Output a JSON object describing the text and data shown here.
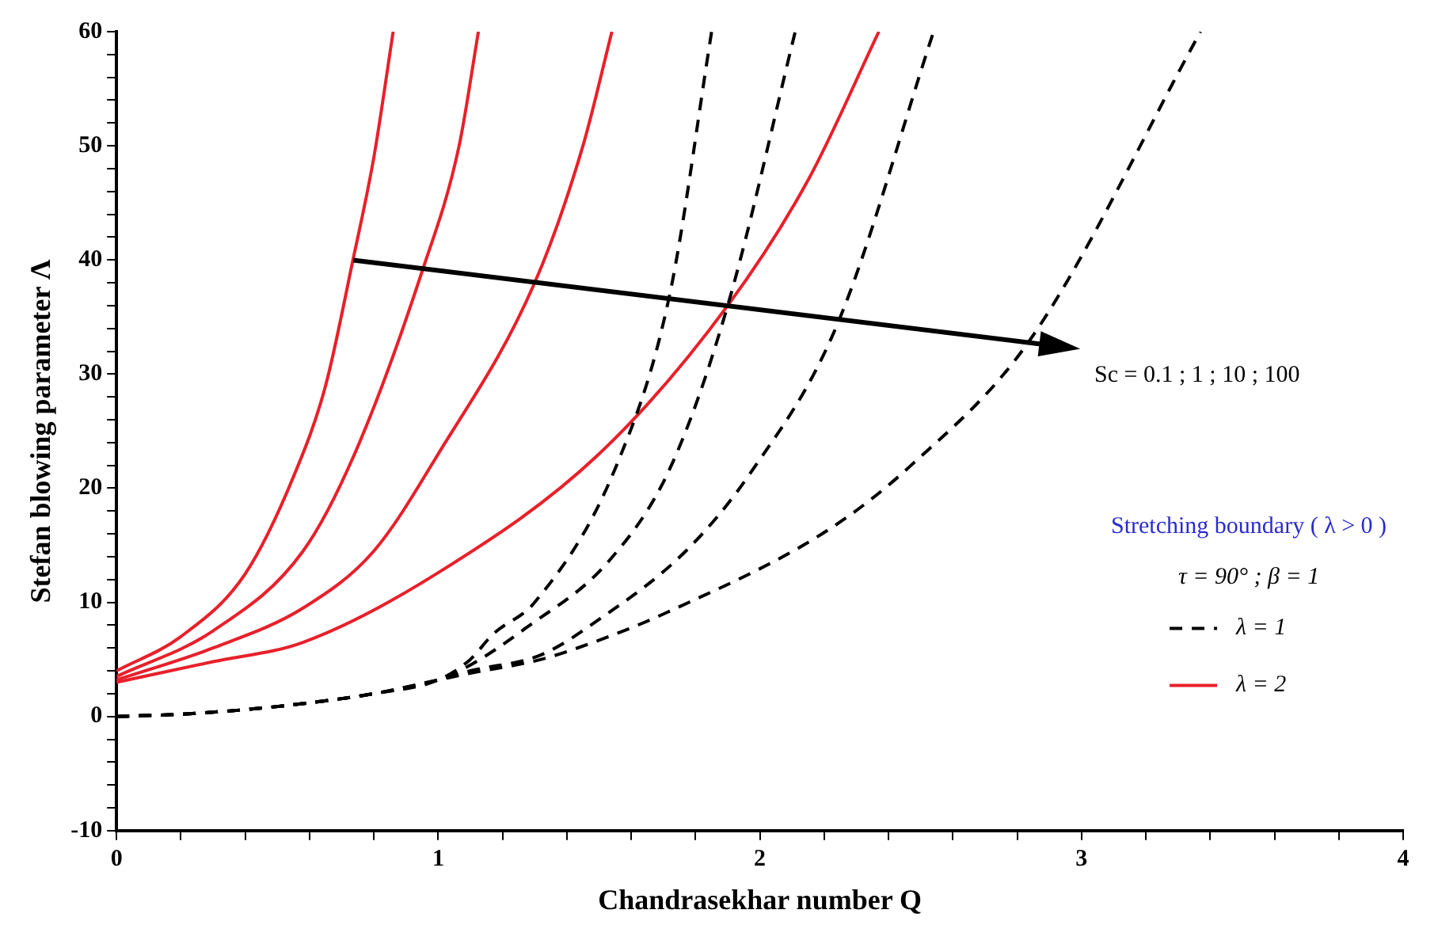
{
  "chart_data": {
    "type": "line",
    "xlabel": "Chandrasekhar number Q",
    "ylabel": "Stefan blowing parameter Λ",
    "legend_title": "Stretching boundary ( λ > 0 )",
    "legend": "right",
    "grid": false,
    "marker": "none",
    "xlim": [
      0,
      4
    ],
    "ylim": [
      -10,
      60
    ],
    "xticks": [
      0,
      {
        "value": 0.2,
        "label": null
      },
      {
        "value": 0.4,
        "label": null
      },
      {
        "value": 0.6,
        "label": null
      },
      {
        "value": 0.8,
        "label": null
      },
      1,
      {
        "value": 1.2,
        "label": null
      },
      {
        "value": 1.4,
        "label": null
      },
      {
        "value": 1.6,
        "label": null
      },
      {
        "value": 1.8,
        "label": null
      },
      2,
      {
        "value": 2.2,
        "label": null
      },
      {
        "value": 2.4,
        "label": null
      },
      {
        "value": 2.6,
        "label": null
      },
      {
        "value": 2.8,
        "label": null
      },
      3,
      {
        "value": 3.2,
        "label": null
      },
      {
        "value": 3.4,
        "label": null
      },
      {
        "value": 3.6,
        "label": null
      },
      {
        "value": 3.8,
        "label": null
      },
      4
    ],
    "yticks": [
      -10,
      {
        "value": -8,
        "label": null
      },
      {
        "value": -6,
        "label": null
      },
      {
        "value": -4,
        "label": null
      },
      {
        "value": -2,
        "label": null
      },
      0,
      {
        "value": 2,
        "label": null
      },
      {
        "value": 4,
        "label": null
      },
      {
        "value": 6,
        "label": null
      },
      {
        "value": 8,
        "label": null
      },
      10,
      {
        "value": 12,
        "label": null
      },
      {
        "value": 14,
        "label": null
      },
      {
        "value": 16,
        "label": null
      },
      {
        "value": 18,
        "label": null
      },
      20,
      {
        "value": 22,
        "label": null
      },
      {
        "value": 24,
        "label": null
      },
      {
        "value": 26,
        "label": null
      },
      {
        "value": 28,
        "label": null
      },
      30,
      {
        "value": 32,
        "label": null
      },
      {
        "value": 34,
        "label": null
      },
      {
        "value": 36,
        "label": null
      },
      {
        "value": 38,
        "label": null
      },
      40,
      {
        "value": 42,
        "label": null
      },
      {
        "value": 44,
        "label": null
      },
      {
        "value": 46,
        "label": null
      },
      {
        "value": 48,
        "label": null
      },
      50,
      {
        "value": 52,
        "label": null
      },
      {
        "value": 54,
        "label": null
      },
      {
        "value": 56,
        "label": null
      },
      {
        "value": 58,
        "label": null
      },
      60
    ],
    "annotations": [
      "Sc = 0.1 ; 1 ; 10 ; 100",
      "τ = 90° ; β = 1"
    ],
    "series": [
      {
        "name": "λ = 1",
        "color": "#000000",
        "line_style": "dashed",
        "x": [
          0,
          0.2,
          0.4,
          0.6,
          0.8,
          1.0,
          1.1,
          1.17,
          1.3,
          1.55,
          1.72,
          1.85
        ],
        "values": [
          0,
          0.2,
          0.6,
          1.2,
          2,
          3.2,
          5,
          7.2,
          10,
          21.7,
          37,
          60
        ]
      },
      {
        "color": "#000000",
        "line_style": "dashed",
        "x": [
          0,
          0.2,
          0.4,
          0.6,
          0.8,
          1.0,
          1.1,
          1.27,
          1.53,
          1.72,
          1.9,
          2.11
        ],
        "values": [
          0,
          0.2,
          0.6,
          1.2,
          2,
          3.2,
          4.5,
          7.7,
          13.6,
          21.7,
          36,
          60
        ]
      },
      {
        "color": "#000000",
        "line_style": "dashed",
        "x": [
          0,
          0.2,
          0.4,
          0.6,
          0.8,
          1.0,
          1.1,
          1.32,
          1.5,
          1.77,
          1.97,
          2.24,
          2.54
        ],
        "values": [
          0,
          0.2,
          0.6,
          1.2,
          2,
          3.2,
          4,
          5.4,
          8.5,
          14.5,
          21.3,
          34.3,
          60
        ]
      },
      {
        "color": "#000000",
        "line_style": "dashed",
        "x": [
          0,
          0.2,
          0.4,
          0.6,
          0.8,
          1.0,
          1.1,
          1.32,
          1.53,
          1.71,
          2.21,
          2.47,
          2.84,
          3.37
        ],
        "values": [
          0,
          0.2,
          0.6,
          1.2,
          2,
          3.2,
          3.8,
          5,
          7,
          9.1,
          16.3,
          22,
          33,
          60
        ]
      },
      {
        "name": "λ = 2",
        "color": "#e8202a",
        "line_style": "solid",
        "x": [
          0,
          0.2,
          0.4,
          0.55,
          0.65,
          0.735,
          0.8,
          0.86
        ],
        "values": [
          4,
          7,
          12.5,
          21,
          29,
          40,
          49,
          60
        ]
      },
      {
        "color": "#e8202a",
        "line_style": "solid",
        "x": [
          0,
          0.3,
          0.58,
          0.74,
          0.95,
          1.065,
          1.125
        ],
        "values": [
          3.5,
          7.5,
          14.5,
          23,
          39,
          50,
          60
        ]
      },
      {
        "color": "#e8202a",
        "line_style": "solid",
        "x": [
          0,
          0.3,
          0.58,
          0.8,
          1.0,
          1.3,
          1.45,
          1.54
        ],
        "values": [
          3.2,
          6,
          9.5,
          14.5,
          23,
          38,
          50,
          60
        ]
      },
      {
        "color": "#e8202a",
        "line_style": "solid",
        "x": [
          0,
          0.3,
          0.58,
          1.0,
          1.5,
          1.9,
          2.15,
          2.37
        ],
        "values": [
          3,
          4.8,
          6.5,
          12.6,
          23,
          36,
          47,
          60
        ]
      }
    ]
  }
}
